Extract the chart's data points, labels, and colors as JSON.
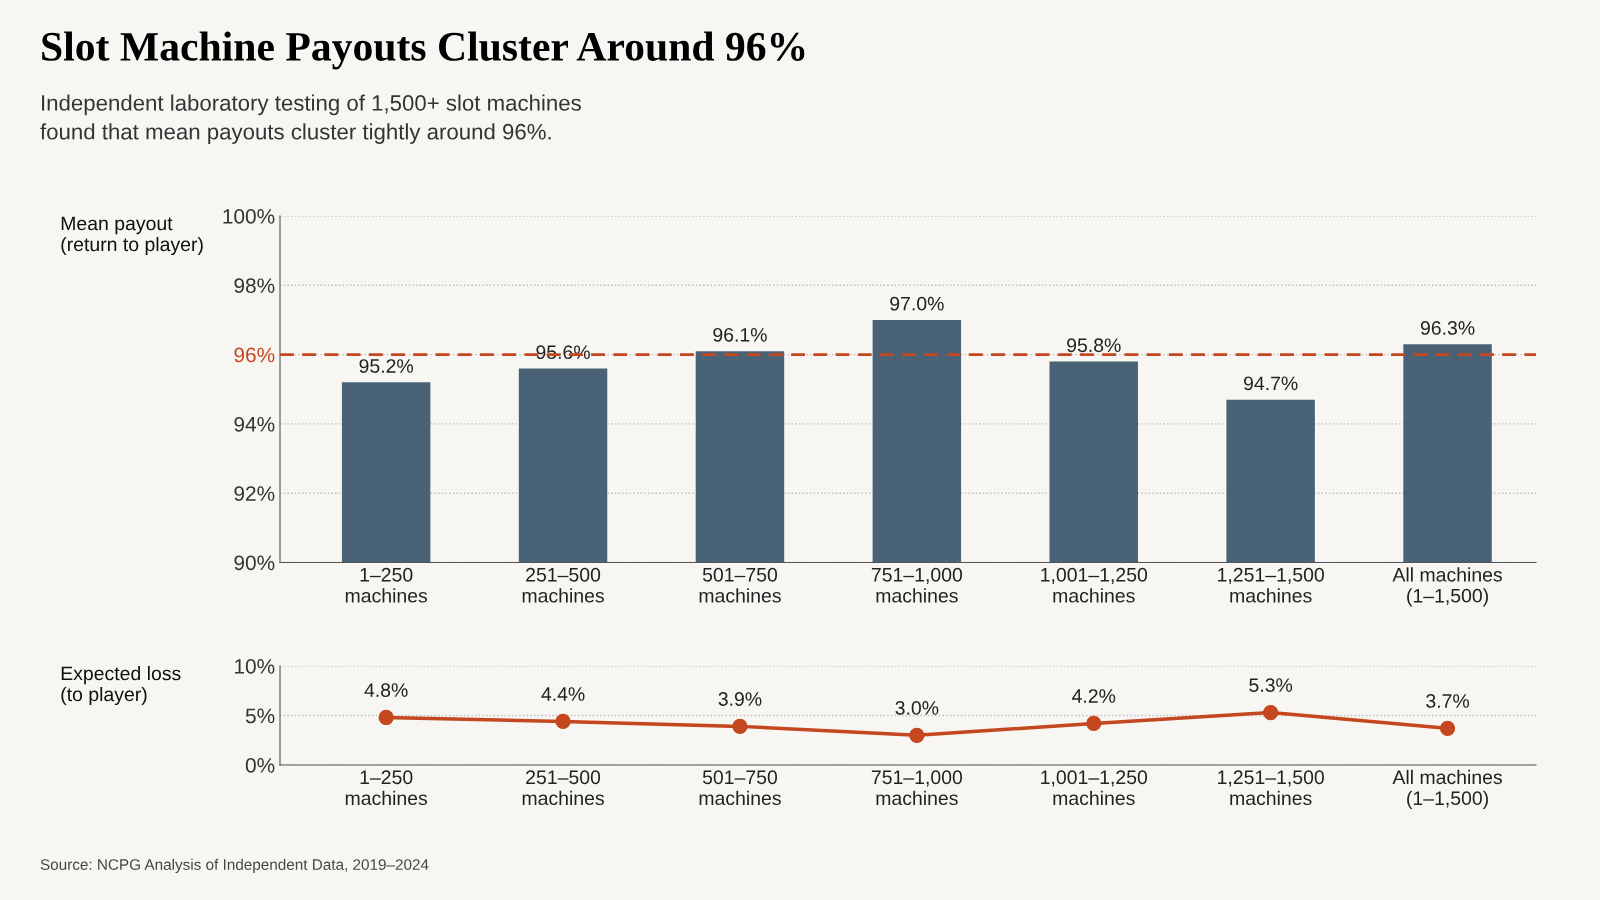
{
  "chart_data": [
    {
      "type": "bar",
      "title": "Slot Machine Payouts Cluster Around 96%",
      "subtitle": "Independent laboratory testing of 1,500+ slot machines\nfound that mean payouts cluster tightly around 96%.",
      "ylabel": "Mean payout\n(return to player)",
      "categories": [
        "1–250\nmachines",
        "251–500\nmachines",
        "501–750\nmachines",
        "751–1,000\nmachines",
        "1,001–1,250\nmachines",
        "1,251–1,500\nmachines",
        "All machines\n(1–1,500)"
      ],
      "series": [
        {
          "color": "#4a6276",
          "values": [
            95.2,
            95.6,
            96.1,
            97.0,
            95.8,
            94.7,
            96.3
          ],
          "value_labels": [
            "95.2%",
            "95.6%",
            "96.1%",
            "97.0%",
            "95.8%",
            "94.7%",
            "96.3%"
          ]
        }
      ],
      "ylim": [
        90,
        100
      ],
      "yticks": [
        {
          "value": 90,
          "label": "90%"
        },
        {
          "value": 92,
          "label": "92%"
        },
        {
          "value": 94,
          "label": "94%"
        },
        {
          "value": 96,
          "label": "96%"
        },
        {
          "value": 98,
          "label": "98%"
        },
        {
          "value": 100,
          "label": "100%"
        }
      ],
      "ref_lines": [
        {
          "axis": "y",
          "value": 96,
          "label": null,
          "color": "#c4471f",
          "line_style": "dashed"
        }
      ],
      "grid": "y"
    },
    {
      "type": "line",
      "ylabel": "Expected loss\n(to player)",
      "categories": [
        "1–250\nmachines",
        "251–500\nmachines",
        "501–750\nmachines",
        "751–1,000\nmachines",
        "1,001–1,250\nmachines",
        "1,251–1,500\nmachines",
        "All machines\n(1–1,500)"
      ],
      "series": [
        {
          "color": "#c4471f",
          "values": [
            4.8,
            4.4,
            3.9,
            3.0,
            4.2,
            5.3,
            3.7
          ],
          "value_labels": [
            "4.8%",
            "4.4%",
            "3.9%",
            "3.0%",
            "4.2%",
            "5.3%",
            "3.7%"
          ]
        }
      ],
      "ylim": [
        0,
        10
      ],
      "yticks": [
        {
          "value": 0,
          "label": "0%"
        },
        {
          "value": 5,
          "label": "5%"
        },
        {
          "value": 10,
          "label": "10%"
        }
      ],
      "marker": "circle",
      "line_style": "solid",
      "grid": "y",
      "annotations": [
        "Source: NCPG Analysis of Independent Data, 2019–2024"
      ]
    }
  ]
}
